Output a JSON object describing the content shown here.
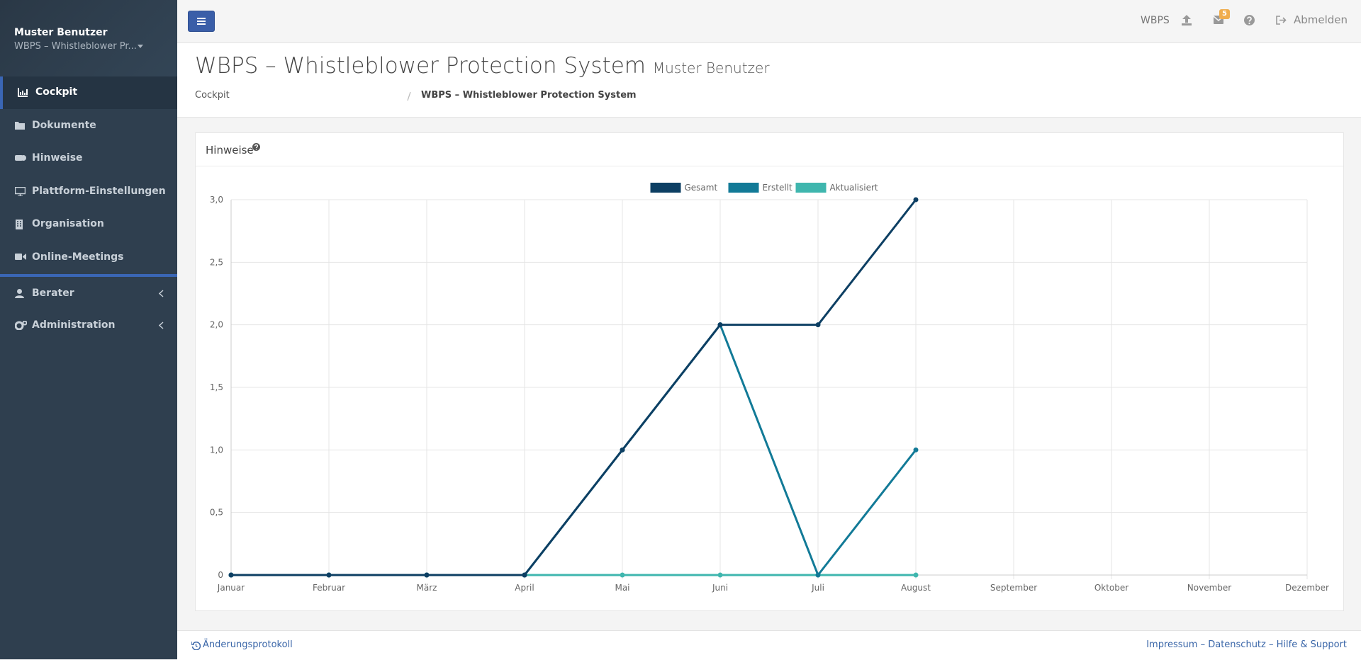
{
  "sidebar": {
    "user": "Muster Benutzer",
    "context": "WBPS – Whistleblower Pr...",
    "menu": [
      "Cockpit",
      "Dokumente",
      "Hinweise",
      "Plattform-Einstellungen",
      "Organisation",
      "Online-Meetings",
      "Berater",
      "Administration"
    ]
  },
  "topbar": {
    "brand": "WBPS",
    "badge": "5",
    "logout": "Abmelden"
  },
  "header": {
    "title": "WBPS – Whistleblower Protection System",
    "subtitle": "Muster Benutzer",
    "breadcrumb": [
      "Cockpit",
      "WBPS – Whistleblower Protection System"
    ]
  },
  "panel": {
    "title": "Hinweise"
  },
  "chart_data": {
    "type": "line",
    "categories": [
      "Januar",
      "Februar",
      "März",
      "April",
      "Mai",
      "Juni",
      "Juli",
      "August",
      "September",
      "Oktober",
      "November",
      "Dezember"
    ],
    "series": [
      {
        "name": "Gesamt",
        "color": "#0d3f63",
        "values": [
          0,
          0,
          0,
          0,
          1,
          2,
          2,
          3,
          null,
          null,
          null,
          null
        ]
      },
      {
        "name": "Erstellt",
        "color": "#127a97",
        "values": [
          0,
          0,
          0,
          0,
          1,
          2,
          0,
          1,
          null,
          null,
          null,
          null
        ]
      },
      {
        "name": "Aktualisiert",
        "color": "#3fb6ae",
        "values": [
          0,
          0,
          0,
          0,
          0,
          0,
          0,
          0,
          null,
          null,
          null,
          null
        ]
      }
    ],
    "ylim": [
      0,
      3
    ],
    "yticks": [
      0,
      {
        "value": 0.5,
        "label": "0,5"
      },
      {
        "value": 1,
        "label": "1,0"
      },
      {
        "value": 1.5,
        "label": "1,5"
      },
      {
        "value": 2,
        "label": "2,0"
      },
      {
        "value": 2.5,
        "label": "2,5"
      },
      {
        "value": 3,
        "label": "3,0"
      }
    ],
    "grid": true,
    "legend": "top"
  },
  "footer": {
    "changelog": "Änderungsprotokoll",
    "links": "Impressum – Datenschutz – Hilfe & Support"
  }
}
